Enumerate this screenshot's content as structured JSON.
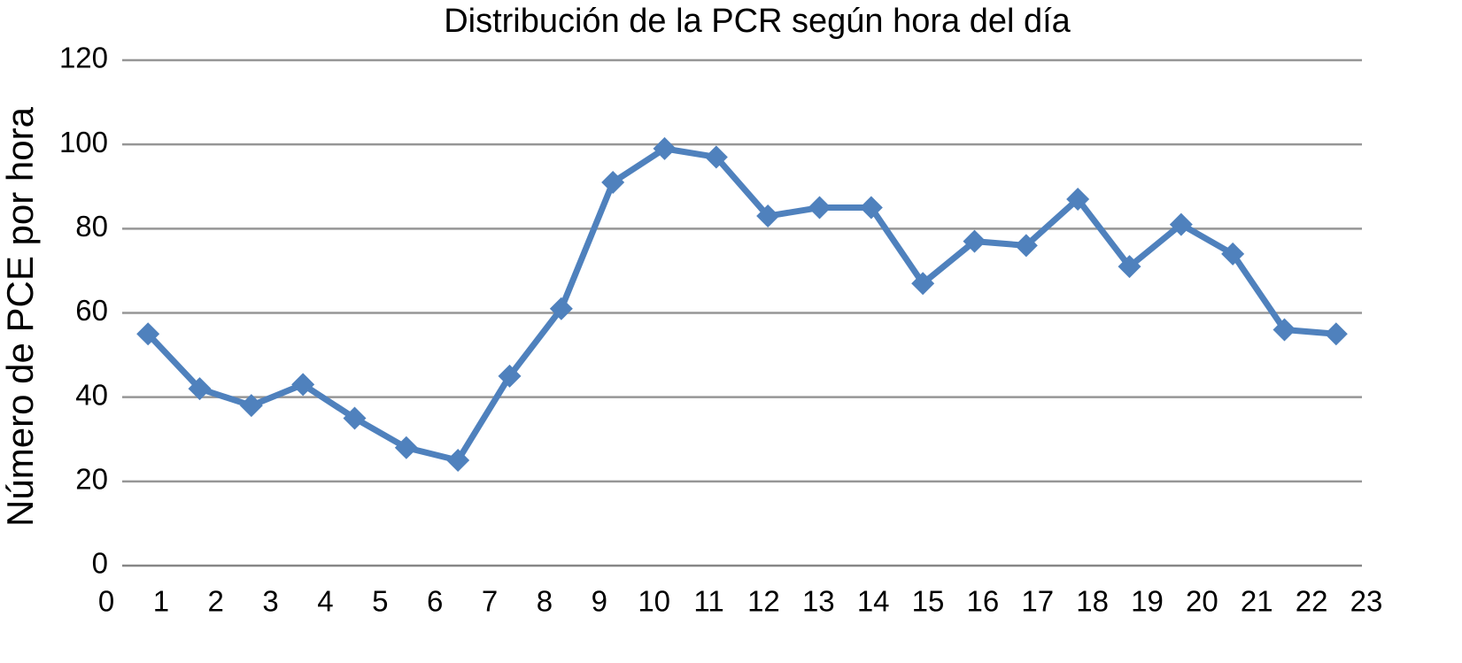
{
  "chart_data": {
    "type": "line",
    "title": "Distribución de la PCR según hora del día",
    "y_label": "Número de PCE por hora",
    "categories": [
      "0",
      "1",
      "2",
      "3",
      "4",
      "5",
      "6",
      "7",
      "8",
      "9",
      "10",
      "11",
      "12",
      "13",
      "14",
      "15",
      "16",
      "17",
      "18",
      "19",
      "20",
      "21",
      "22",
      "23"
    ],
    "series": [
      {
        "name": "PCE",
        "color": "#4f81bd",
        "values": [
          55,
          42,
          38,
          43,
          35,
          28,
          25,
          45,
          61,
          91,
          99,
          97,
          83,
          85,
          85,
          67,
          77,
          76,
          87,
          71,
          81,
          74,
          56,
          55
        ]
      }
    ],
    "ylim": [
      0,
      120
    ],
    "yticks": [
      0,
      20,
      40,
      60,
      80,
      100,
      120
    ],
    "grid": true
  }
}
